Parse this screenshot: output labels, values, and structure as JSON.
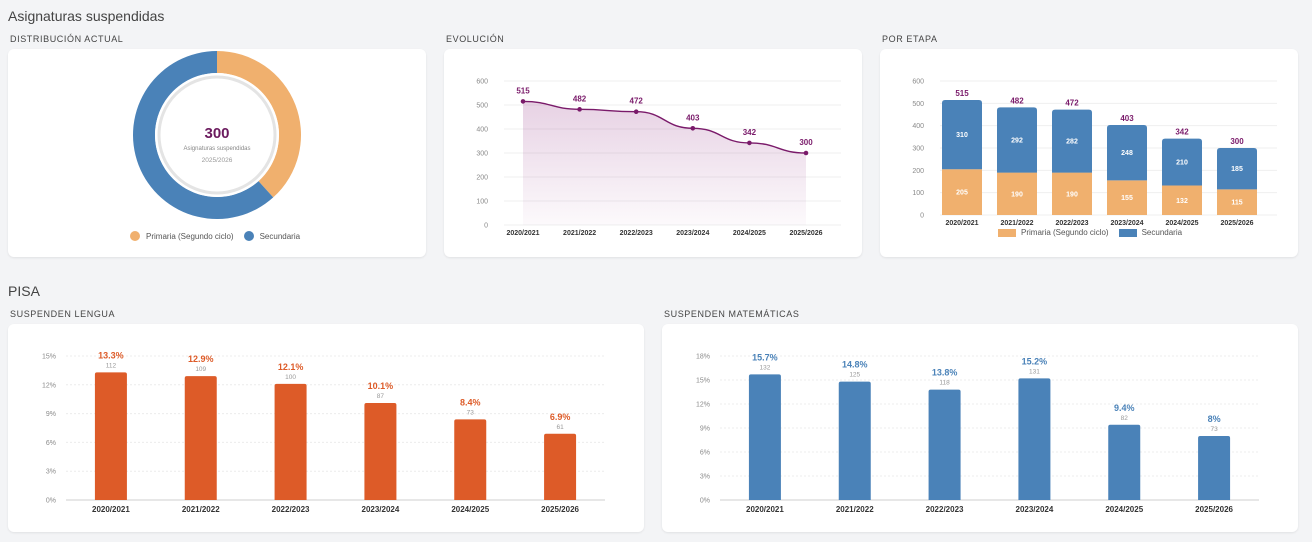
{
  "sections": {
    "main_title": "Asignaturas suspendidas",
    "pisa_title": "PISA"
  },
  "cards": {
    "distribution": "DISTRIBUCIÓN ACTUAL",
    "evolution": "EVOLUCIÓN",
    "by_stage": "POR ETAPA",
    "lengua": "SUSPENDEN LENGUA",
    "matematicas": "SUSPENDEN MATEMÁTICAS"
  },
  "donut_center": {
    "value": "300",
    "label": "Asignaturas suspendidas",
    "year": "2025/2026"
  },
  "legend": {
    "primaria": "Primaria (Segundo ciclo)",
    "secundaria": "Secundaria"
  },
  "colors": {
    "primaria": "#f0b06e",
    "secundaria": "#4a82b8",
    "line": "#7a1a6a",
    "lengua": "#dd5b28",
    "matematicas": "#4a82b8"
  },
  "chart_data": [
    {
      "type": "pie",
      "variant": "donut",
      "labels": [
        "Primaria (Segundo ciclo)",
        "Secundaria"
      ],
      "values": [
        115,
        185
      ]
    },
    {
      "type": "area",
      "categories": [
        "2020/2021",
        "2021/2022",
        "2022/2023",
        "2023/2024",
        "2024/2025",
        "2025/2026"
      ],
      "values": [
        515,
        482,
        472,
        403,
        342,
        300
      ],
      "ylim": [
        0,
        600
      ],
      "yticks": [
        0,
        100,
        200,
        300,
        400,
        500,
        600
      ]
    },
    {
      "type": "bar",
      "stacked": true,
      "categories": [
        "2020/2021",
        "2021/2022",
        "2022/2023",
        "2023/2024",
        "2024/2025",
        "2025/2026"
      ],
      "series": [
        {
          "name": "Primaria (Segundo ciclo)",
          "values": [
            205,
            190,
            190,
            155,
            132,
            115
          ]
        },
        {
          "name": "Secundaria",
          "values": [
            310,
            292,
            282,
            248,
            210,
            185
          ]
        }
      ],
      "totals": [
        515,
        482,
        472,
        403,
        342,
        300
      ],
      "ylim": [
        0,
        600
      ],
      "yticks": [
        0,
        100,
        200,
        300,
        400,
        500,
        600
      ],
      "legend": "bottom"
    },
    {
      "type": "bar",
      "categories": [
        "2020/2021",
        "2021/2022",
        "2022/2023",
        "2023/2024",
        "2024/2025",
        "2025/2026"
      ],
      "values": [
        13.3,
        12.9,
        12.1,
        10.1,
        8.4,
        6.9
      ],
      "labels": [
        "13.3%",
        "12.9%",
        "12.1%",
        "10.1%",
        "8.4%",
        "6.9%"
      ],
      "counts": [
        "112",
        "109",
        "100",
        "87",
        "73",
        "61"
      ],
      "ylim": [
        0,
        15
      ],
      "yticks": [
        "0%",
        "3%",
        "6%",
        "9%",
        "12%",
        "15%"
      ]
    },
    {
      "type": "bar",
      "categories": [
        "2020/2021",
        "2021/2022",
        "2022/2023",
        "2023/2024",
        "2024/2025",
        "2025/2026"
      ],
      "values": [
        15.7,
        14.8,
        13.8,
        15.2,
        9.4,
        8
      ],
      "labels": [
        "15.7%",
        "14.8%",
        "13.8%",
        "15.2%",
        "9.4%",
        "8%"
      ],
      "counts": [
        "132",
        "125",
        "118",
        "131",
        "82",
        "73"
      ],
      "ylim": [
        0,
        18
      ],
      "yticks": [
        "0%",
        "3%",
        "6%",
        "9%",
        "12%",
        "15%",
        "18%"
      ]
    }
  ]
}
